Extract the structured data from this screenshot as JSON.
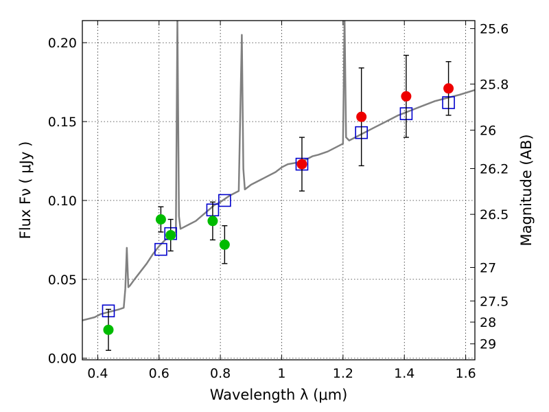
{
  "chart_data": {
    "type": "scatter",
    "xlabel": "Wavelength  λ (μm)",
    "ylabel": "Flux  Fν  ( μJy )",
    "ylabel_right": "Magnitude (AB)",
    "xlim": [
      0.35,
      1.63
    ],
    "ylim": [
      -0.001,
      0.214
    ],
    "grid": true,
    "x_ticks": [
      {
        "value": 0.4,
        "label": "0.4"
      },
      {
        "value": 0.6,
        "label": "0.6"
      },
      {
        "value": 0.8,
        "label": "0.8"
      },
      {
        "value": 1.0,
        "label": "1"
      },
      {
        "value": 1.2,
        "label": "1.2"
      },
      {
        "value": 1.4,
        "label": "1.4"
      },
      {
        "value": 1.6,
        "label": "1.6"
      }
    ],
    "y_ticks": [
      {
        "value": 0.0,
        "label": "0.00"
      },
      {
        "value": 0.05,
        "label": "0.05"
      },
      {
        "value": 0.1,
        "label": "0.10"
      },
      {
        "value": 0.15,
        "label": "0.15"
      },
      {
        "value": 0.2,
        "label": "0.20"
      }
    ],
    "y2_ticks": [
      {
        "value": 25.6,
        "label": "25.6"
      },
      {
        "value": 25.8,
        "label": "25.8"
      },
      {
        "value": 26.0,
        "label": "26"
      },
      {
        "value": 26.2,
        "label": "26.2"
      },
      {
        "value": 26.5,
        "label": "26.5"
      },
      {
        "value": 27.0,
        "label": "27"
      },
      {
        "value": 27.5,
        "label": "27.5"
      },
      {
        "value": 28.0,
        "label": "28"
      },
      {
        "value": 29.0,
        "label": "29"
      }
    ],
    "series": [
      {
        "kind": "model-spectrum",
        "color": "#808080",
        "x": [
          0.35,
          0.37,
          0.39,
          0.41,
          0.43,
          0.45,
          0.47,
          0.485,
          0.49,
          0.495,
          0.5,
          0.505,
          0.52,
          0.54,
          0.56,
          0.58,
          0.6,
          0.62,
          0.64,
          0.655,
          0.66,
          0.665,
          0.67,
          0.7,
          0.72,
          0.75,
          0.78,
          0.8,
          0.83,
          0.86,
          0.87,
          0.875,
          0.88,
          0.9,
          0.94,
          0.98,
          1.0,
          1.02,
          1.05,
          1.08,
          1.1,
          1.12,
          1.15,
          1.18,
          1.2,
          1.205,
          1.21,
          1.22,
          1.26,
          1.3,
          1.34,
          1.38,
          1.42,
          1.46,
          1.5,
          1.54,
          1.58,
          1.63
        ],
        "y": [
          0.024,
          0.025,
          0.026,
          0.028,
          0.029,
          0.03,
          0.031,
          0.032,
          0.044,
          0.07,
          0.045,
          0.046,
          0.05,
          0.055,
          0.06,
          0.066,
          0.071,
          0.075,
          0.078,
          0.08,
          0.215,
          0.09,
          0.082,
          0.085,
          0.087,
          0.092,
          0.097,
          0.099,
          0.103,
          0.106,
          0.205,
          0.12,
          0.107,
          0.11,
          0.114,
          0.118,
          0.121,
          0.123,
          0.124,
          0.126,
          0.128,
          0.129,
          0.131,
          0.134,
          0.136,
          0.215,
          0.14,
          0.138,
          0.142,
          0.146,
          0.15,
          0.154,
          0.157,
          0.16,
          0.163,
          0.165,
          0.167,
          0.17
        ]
      },
      {
        "kind": "model-bandpass",
        "color": "#0000cc",
        "x": [
          0.435,
          0.606,
          0.638,
          0.775,
          0.814,
          1.066,
          1.26,
          1.406,
          1.544
        ],
        "y": [
          0.03,
          0.069,
          0.079,
          0.094,
          0.1,
          0.123,
          0.143,
          0.155,
          0.162
        ]
      },
      {
        "kind": "observed-optical",
        "color": "#00bb00",
        "x": [
          0.435,
          0.606,
          0.638,
          0.775,
          0.814
        ],
        "y": [
          0.018,
          0.088,
          0.078,
          0.087,
          0.072
        ],
        "yerr": [
          0.013,
          0.008,
          0.01,
          0.012,
          0.012
        ]
      },
      {
        "kind": "observed-nir",
        "color": "#ee0000",
        "x": [
          1.066,
          1.26,
          1.406,
          1.544
        ],
        "y": [
          0.123,
          0.153,
          0.166,
          0.171
        ],
        "yerr": [
          0.017,
          0.031,
          0.026,
          0.017
        ]
      }
    ]
  }
}
